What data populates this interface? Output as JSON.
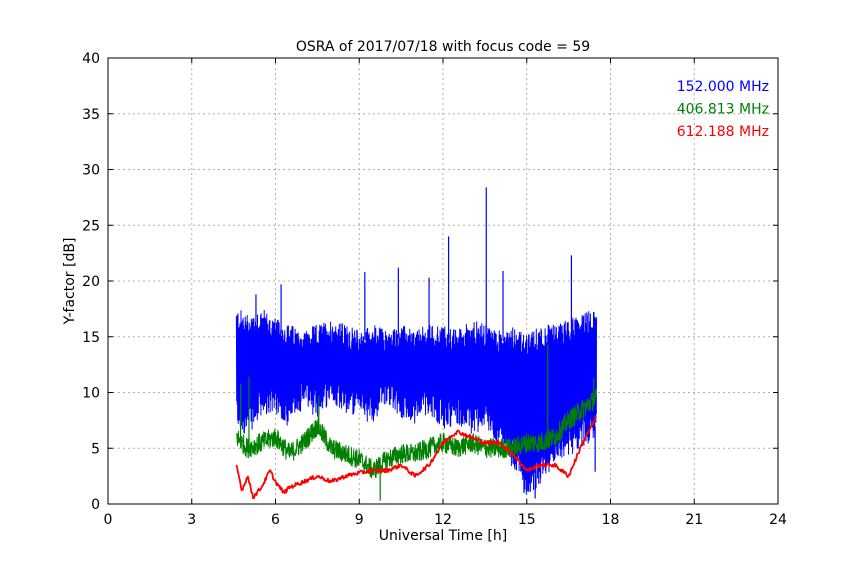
{
  "chart_data": {
    "type": "line",
    "title": "OSRA of 2017/07/18 with focus code = 59",
    "xlabel": "Universal Time [h]",
    "ylabel": "Y-factor [dB]",
    "xlim": [
      0,
      24
    ],
    "ylim": [
      0,
      40
    ],
    "x_ticks": [
      0,
      3,
      6,
      9,
      12,
      15,
      18,
      21,
      24
    ],
    "y_ticks": [
      0,
      5,
      10,
      15,
      20,
      25,
      30,
      35,
      40
    ],
    "grid": true,
    "legend_position": "top-right",
    "series": [
      {
        "name": "152.000 MHz",
        "color": "#0000ff",
        "noisy": true,
        "upper": [
          [
            4.6,
            16.5
          ],
          [
            5.0,
            16.0
          ],
          [
            5.5,
            16.5
          ],
          [
            6.0,
            15.5
          ],
          [
            6.5,
            15.0
          ],
          [
            7.0,
            14.5
          ],
          [
            7.5,
            15.0
          ],
          [
            8.0,
            15.5
          ],
          [
            8.5,
            15.0
          ],
          [
            9.0,
            14.5
          ],
          [
            9.5,
            15.0
          ],
          [
            10.0,
            14.5
          ],
          [
            10.5,
            15.0
          ],
          [
            11.0,
            14.5
          ],
          [
            11.5,
            15.0
          ],
          [
            12.0,
            15.0
          ],
          [
            12.5,
            14.5
          ],
          [
            13.0,
            15.5
          ],
          [
            13.5,
            15.0
          ],
          [
            14.0,
            14.5
          ],
          [
            14.5,
            15.0
          ],
          [
            15.0,
            14.0
          ],
          [
            15.5,
            15.0
          ],
          [
            16.0,
            15.0
          ],
          [
            16.5,
            15.5
          ],
          [
            17.0,
            16.0
          ],
          [
            17.5,
            16.5
          ]
        ],
        "lower": [
          [
            4.6,
            8.0
          ],
          [
            5.0,
            7.5
          ],
          [
            5.5,
            9.0
          ],
          [
            6.0,
            9.5
          ],
          [
            6.5,
            8.0
          ],
          [
            7.0,
            10.0
          ],
          [
            7.5,
            9.0
          ],
          [
            8.0,
            10.5
          ],
          [
            8.5,
            9.5
          ],
          [
            9.0,
            9.0
          ],
          [
            9.5,
            8.5
          ],
          [
            10.0,
            10.5
          ],
          [
            10.5,
            9.0
          ],
          [
            11.0,
            8.5
          ],
          [
            11.5,
            9.5
          ],
          [
            12.0,
            8.0
          ],
          [
            12.5,
            8.5
          ],
          [
            13.0,
            7.5
          ],
          [
            13.5,
            8.0
          ],
          [
            14.0,
            6.5
          ],
          [
            14.5,
            4.5
          ],
          [
            15.0,
            2.0
          ],
          [
            15.5,
            3.0
          ],
          [
            16.0,
            5.0
          ],
          [
            16.5,
            5.5
          ],
          [
            17.0,
            6.5
          ],
          [
            17.5,
            7.0
          ]
        ],
        "spikes": [
          [
            5.3,
            18.8
          ],
          [
            6.2,
            19.7
          ],
          [
            9.2,
            20.8
          ],
          [
            10.4,
            21.2
          ],
          [
            11.5,
            20.3
          ],
          [
            12.2,
            24.0
          ],
          [
            13.55,
            28.4
          ],
          [
            14.15,
            20.9
          ],
          [
            14.9,
            1.0
          ],
          [
            15.3,
            0.5
          ],
          [
            16.6,
            22.3
          ],
          [
            17.45,
            2.9
          ]
        ]
      },
      {
        "name": "406.813 MHz",
        "color": "#008000",
        "noisy": true,
        "points": [
          [
            4.6,
            6.0
          ],
          [
            5.0,
            5.0
          ],
          [
            5.5,
            5.5
          ],
          [
            6.0,
            6.0
          ],
          [
            6.5,
            4.5
          ],
          [
            7.0,
            5.5
          ],
          [
            7.5,
            7.0
          ],
          [
            8.0,
            5.0
          ],
          [
            8.5,
            4.5
          ],
          [
            9.0,
            4.0
          ],
          [
            9.5,
            3.0
          ],
          [
            10.0,
            4.0
          ],
          [
            10.5,
            4.5
          ],
          [
            11.0,
            4.5
          ],
          [
            11.5,
            5.0
          ],
          [
            12.0,
            5.5
          ],
          [
            12.5,
            5.0
          ],
          [
            13.0,
            5.5
          ],
          [
            13.5,
            5.0
          ],
          [
            14.0,
            5.0
          ],
          [
            14.5,
            5.0
          ],
          [
            15.0,
            5.5
          ],
          [
            15.5,
            5.5
          ],
          [
            16.0,
            6.0
          ],
          [
            16.5,
            7.5
          ],
          [
            17.0,
            8.5
          ],
          [
            17.5,
            9.5
          ]
        ],
        "spikes": [
          [
            4.75,
            10.8
          ],
          [
            5.05,
            11.4
          ],
          [
            7.55,
            9.7
          ],
          [
            9.75,
            0.3
          ],
          [
            15.75,
            14.3
          ],
          [
            17.4,
            11.3
          ]
        ]
      },
      {
        "name": "612.188 MHz",
        "color": "#ff0000",
        "noisy": false,
        "points": [
          [
            4.6,
            3.5
          ],
          [
            4.8,
            1.2
          ],
          [
            5.0,
            2.5
          ],
          [
            5.2,
            0.6
          ],
          [
            5.5,
            1.5
          ],
          [
            5.8,
            3.0
          ],
          [
            6.0,
            2.0
          ],
          [
            6.3,
            1.0
          ],
          [
            6.5,
            1.5
          ],
          [
            7.0,
            2.0
          ],
          [
            7.5,
            2.5
          ],
          [
            8.0,
            2.0
          ],
          [
            8.5,
            2.5
          ],
          [
            9.0,
            2.8
          ],
          [
            9.5,
            3.0
          ],
          [
            10.0,
            3.0
          ],
          [
            10.5,
            3.5
          ],
          [
            11.0,
            2.5
          ],
          [
            11.5,
            3.5
          ],
          [
            12.0,
            5.5
          ],
          [
            12.5,
            6.5
          ],
          [
            13.0,
            6.0
          ],
          [
            13.5,
            5.5
          ],
          [
            14.0,
            5.5
          ],
          [
            14.5,
            4.5
          ],
          [
            15.0,
            3.0
          ],
          [
            15.5,
            3.5
          ],
          [
            16.0,
            3.5
          ],
          [
            16.5,
            2.5
          ],
          [
            17.0,
            5.5
          ],
          [
            17.5,
            7.8
          ]
        ]
      }
    ]
  }
}
